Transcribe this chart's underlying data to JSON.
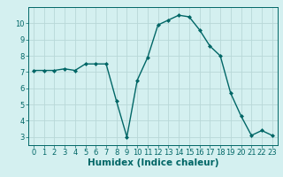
{
  "x": [
    0,
    1,
    2,
    3,
    4,
    5,
    6,
    7,
    8,
    9,
    10,
    11,
    12,
    13,
    14,
    15,
    16,
    17,
    18,
    19,
    20,
    21,
    22,
    23
  ],
  "y": [
    7.1,
    7.1,
    7.1,
    7.2,
    7.1,
    7.5,
    7.5,
    7.5,
    5.2,
    3.0,
    6.5,
    7.9,
    9.9,
    10.2,
    10.5,
    10.4,
    9.6,
    8.6,
    8.0,
    5.7,
    4.3,
    3.1,
    3.4,
    3.1
  ],
  "line_color": "#006666",
  "marker": "D",
  "marker_size": 2.0,
  "bg_color": "#d4f0f0",
  "grid_color": "#b8d8d8",
  "xlabel": "Humidex (Indice chaleur)",
  "ylim": [
    2.5,
    11.0
  ],
  "xlim": [
    -0.5,
    23.5
  ],
  "yticks": [
    3,
    4,
    5,
    6,
    7,
    8,
    9,
    10
  ],
  "xticks": [
    0,
    1,
    2,
    3,
    4,
    5,
    6,
    7,
    8,
    9,
    10,
    11,
    12,
    13,
    14,
    15,
    16,
    17,
    18,
    19,
    20,
    21,
    22,
    23
  ],
  "tick_fontsize": 6.0,
  "label_fontsize": 7.5,
  "linewidth": 1.0
}
